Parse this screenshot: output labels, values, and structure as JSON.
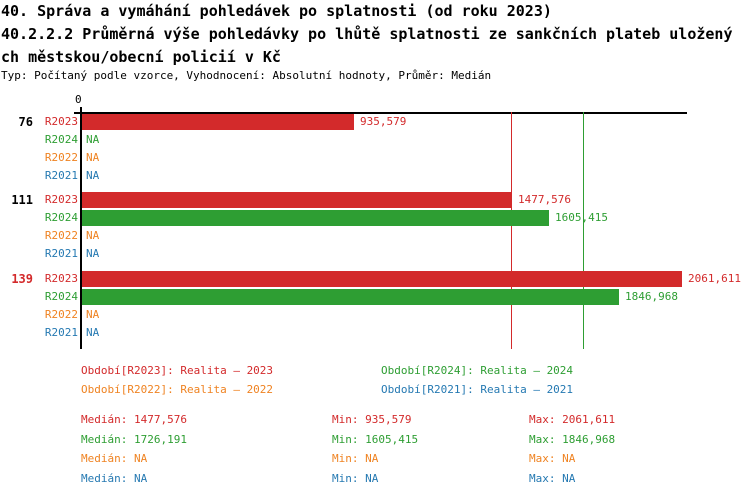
{
  "header": {
    "title_line1": "40. Správa a vymáhání pohledávek po splatnosti (od roku 2023)",
    "title_line2": "40.2.2.2 Průměrná výše pohledávky po lhůtě splatnosti ze sankčních plateb uložený",
    "title_line3": "ch městskou/obecní policií v Kč",
    "meta": "Typ: Počítaný podle vzorce, Vyhodnocení: Absolutní hodnoty, Průměr: Medián"
  },
  "colors": {
    "R2023": "#d32a2b",
    "R2024": "#2e9e33",
    "R2022": "#ef8322",
    "R2021": "#2579b2",
    "axis": "#000000",
    "highlight_group": "#d32a2b"
  },
  "chart_data": {
    "type": "bar",
    "orientation": "horizontal",
    "origin_label": "0",
    "na_label": "NA",
    "series_order": [
      "R2023",
      "R2024",
      "R2022",
      "R2021"
    ],
    "groups": [
      {
        "label": "76",
        "label_color": "#000000",
        "rows": [
          {
            "series": "R2023",
            "value": 935.579,
            "display": "935,579"
          },
          {
            "series": "R2024",
            "value": null,
            "display": "NA"
          },
          {
            "series": "R2022",
            "value": null,
            "display": "NA"
          },
          {
            "series": "R2021",
            "value": null,
            "display": "NA"
          }
        ]
      },
      {
        "label": "111",
        "label_color": "#000000",
        "rows": [
          {
            "series": "R2023",
            "value": 1477.576,
            "display": "1477,576"
          },
          {
            "series": "R2024",
            "value": 1605.415,
            "display": "1605,415"
          },
          {
            "series": "R2022",
            "value": null,
            "display": "NA"
          },
          {
            "series": "R2021",
            "value": null,
            "display": "NA"
          }
        ]
      },
      {
        "label": "139",
        "label_color": "#d32a2b",
        "rows": [
          {
            "series": "R2023",
            "value": 2061.611,
            "display": "2061,611"
          },
          {
            "series": "R2024",
            "value": 1846.968,
            "display": "1846,968"
          },
          {
            "series": "R2022",
            "value": null,
            "display": "NA"
          },
          {
            "series": "R2021",
            "value": null,
            "display": "NA"
          }
        ]
      }
    ],
    "reference_lines": [
      {
        "series": "R2023",
        "value": 1477.576,
        "label": "median-2023"
      },
      {
        "series": "R2024",
        "value": 1726.191,
        "label": "median-2024"
      }
    ]
  },
  "legend": [
    {
      "series": "R2023",
      "text": "Období[R2023]: Realita – 2023"
    },
    {
      "series": "R2024",
      "text": "Období[R2024]: Realita – 2024"
    },
    {
      "series": "R2022",
      "text": "Období[R2022]: Realita – 2022"
    },
    {
      "series": "R2021",
      "text": "Období[R2021]: Realita – 2021"
    }
  ],
  "stats": {
    "labels": {
      "median": "Medián",
      "min": "Min",
      "max": "Max"
    },
    "rows": [
      {
        "series": "R2023",
        "median": "1477,576",
        "min": "935,579",
        "max": "2061,611"
      },
      {
        "series": "R2024",
        "median": "1726,191",
        "min": "1605,415",
        "max": "1846,968"
      },
      {
        "series": "R2022",
        "median": "NA",
        "min": "NA",
        "max": "NA"
      },
      {
        "series": "R2021",
        "median": "NA",
        "min": "NA",
        "max": "NA"
      }
    ]
  }
}
